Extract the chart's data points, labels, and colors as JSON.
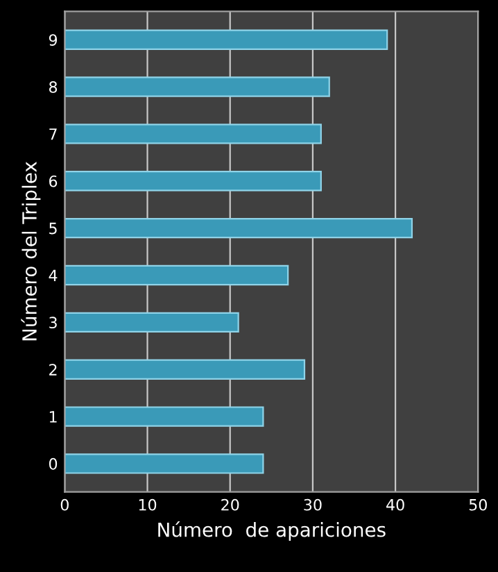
{
  "chart_data": {
    "type": "bar",
    "orientation": "horizontal",
    "xlabel": "Número  de apariciones",
    "ylabel": "Número del Triplex",
    "categories": [
      "9",
      "8",
      "7",
      "6",
      "5",
      "4",
      "3",
      "2",
      "1",
      "0"
    ],
    "values": [
      39,
      32,
      31,
      31,
      42,
      27,
      21,
      29,
      24,
      24
    ],
    "color": "#3a9ab8",
    "xlim": [
      0,
      50
    ],
    "xticks": [
      0,
      10,
      20,
      30,
      40,
      50
    ],
    "grid": "x"
  }
}
